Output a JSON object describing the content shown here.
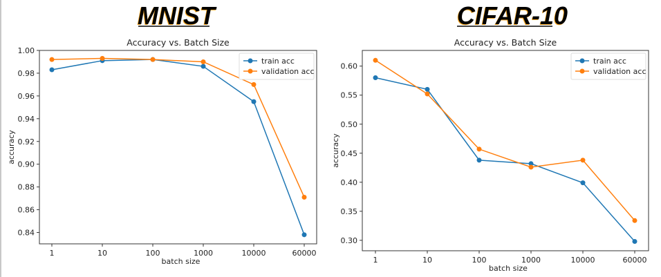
{
  "headings": {
    "left": "MNIST",
    "right": "CIFAR-10"
  },
  "colors": {
    "train": "#1f77b4",
    "validation": "#ff7f0e"
  },
  "chart_data": [
    {
      "type": "line",
      "dataset": "MNIST",
      "title": "Accuracy vs. Batch Size",
      "xlabel": "batch size",
      "ylabel": "accuracy",
      "x": [
        "1",
        "10",
        "100",
        "1000",
        "10000",
        "60000"
      ],
      "yticks": [
        "0.84",
        "0.86",
        "0.88",
        "0.90",
        "0.92",
        "0.94",
        "0.96",
        "0.98",
        "1.00"
      ],
      "ylim": [
        0.83,
        1.0
      ],
      "legend": "top-right",
      "grid": false,
      "series": [
        {
          "name": "train acc",
          "values": [
            0.983,
            0.991,
            0.992,
            0.986,
            0.955,
            0.838
          ]
        },
        {
          "name": "validation acc",
          "values": [
            0.992,
            0.993,
            0.992,
            0.99,
            0.97,
            0.871
          ]
        }
      ]
    },
    {
      "type": "line",
      "dataset": "CIFAR-10",
      "title": "Accuracy vs. Batch Size",
      "xlabel": "batch size",
      "ylabel": "accuracy",
      "x": [
        "1",
        "10",
        "100",
        "1000",
        "10000",
        "60000"
      ],
      "yticks": [
        "0.30",
        "0.35",
        "0.40",
        "0.45",
        "0.50",
        "0.55",
        "0.60"
      ],
      "ylim": [
        0.282,
        0.627
      ],
      "legend": "top-right",
      "grid": false,
      "series": [
        {
          "name": "train acc",
          "values": [
            0.58,
            0.56,
            0.438,
            0.432,
            0.399,
            0.298
          ]
        },
        {
          "name": "validation acc",
          "values": [
            0.61,
            0.552,
            0.457,
            0.426,
            0.438,
            0.334
          ]
        }
      ]
    }
  ]
}
